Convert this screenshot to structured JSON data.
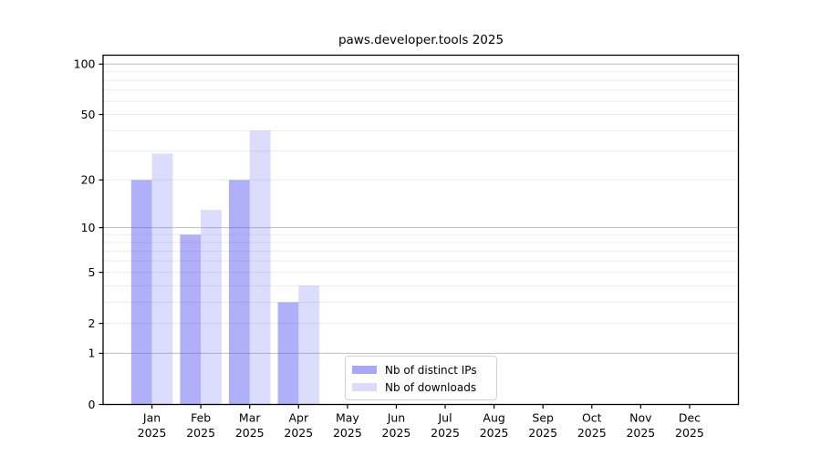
{
  "chart_data": {
    "type": "bar",
    "title": "paws.developer.tools 2025",
    "categories": [
      "Jan",
      "Feb",
      "Mar",
      "Apr",
      "May",
      "Jun",
      "Jul",
      "Aug",
      "Sep",
      "Oct",
      "Nov",
      "Dec"
    ],
    "category_year": "2025",
    "series": [
      {
        "name": "Nb of distinct IPs",
        "values": [
          20,
          9,
          20,
          3,
          0,
          0,
          0,
          0,
          0,
          0,
          0,
          0
        ],
        "color": "#5858f3",
        "fill_opacity": 0.47,
        "solid_color": "#a8a8f8"
      },
      {
        "name": "Nb of downloads",
        "values": [
          29,
          13,
          40,
          4,
          0,
          0,
          0,
          0,
          0,
          0,
          0,
          0
        ],
        "color": "#5858f3",
        "fill_opacity": 0.21,
        "solid_color": "#dcdcfa"
      }
    ],
    "yscale": "log1p",
    "ylim": [
      0,
      113
    ],
    "y_ticks": [
      0,
      1,
      2,
      5,
      10,
      20,
      50,
      100
    ],
    "y_major_gridlines": [
      1,
      10,
      100
    ],
    "y_minor_gridlines": [
      2,
      3,
      4,
      5,
      6,
      7,
      8,
      9,
      20,
      30,
      40,
      50,
      60,
      70,
      80,
      90
    ],
    "grid": "horizontal",
    "legend_position": "lower center"
  },
  "colors": {
    "background": "#ffffff",
    "axis": "#000000",
    "text": "#000000",
    "major_grid": "#c6c6c6",
    "minor_grid": "#ebebeb",
    "legend_border": "#d2d2d2"
  }
}
